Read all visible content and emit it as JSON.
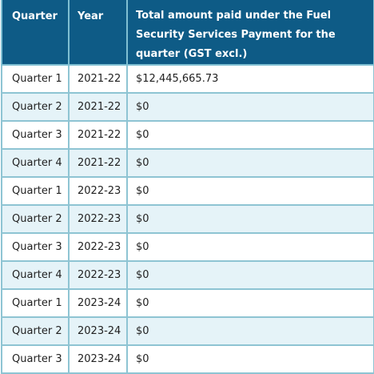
{
  "table": {
    "headers": {
      "quarter": "Quarter",
      "year": "Year",
      "amount": "Total amount paid under the Fuel Security Services Payment for the quarter (GST excl.)"
    },
    "rows": [
      {
        "quarter": "Quarter 1",
        "year": "2021-22",
        "amount": "$12,445,665.73"
      },
      {
        "quarter": "Quarter 2",
        "year": "2021-22",
        "amount": "$0"
      },
      {
        "quarter": "Quarter 3",
        "year": "2021-22",
        "amount": "$0"
      },
      {
        "quarter": "Quarter 4",
        "year": "2021-22",
        "amount": "$0"
      },
      {
        "quarter": "Quarter 1",
        "year": "2022-23",
        "amount": "$0"
      },
      {
        "quarter": "Quarter 2",
        "year": "2022-23",
        "amount": "$0"
      },
      {
        "quarter": "Quarter 3",
        "year": "2022-23",
        "amount": "$0"
      },
      {
        "quarter": "Quarter 4",
        "year": "2022-23",
        "amount": "$0"
      },
      {
        "quarter": "Quarter 1",
        "year": "2023-24",
        "amount": "$0"
      },
      {
        "quarter": "Quarter 2",
        "year": "2023-24",
        "amount": "$0"
      },
      {
        "quarter": "Quarter 3",
        "year": "2023-24",
        "amount": "$0"
      }
    ]
  },
  "colors": {
    "header_background": "#0e5b86",
    "header_text": "#ffffff",
    "row_stripe": "#e5f3f8",
    "border": "#8ec4d3"
  }
}
